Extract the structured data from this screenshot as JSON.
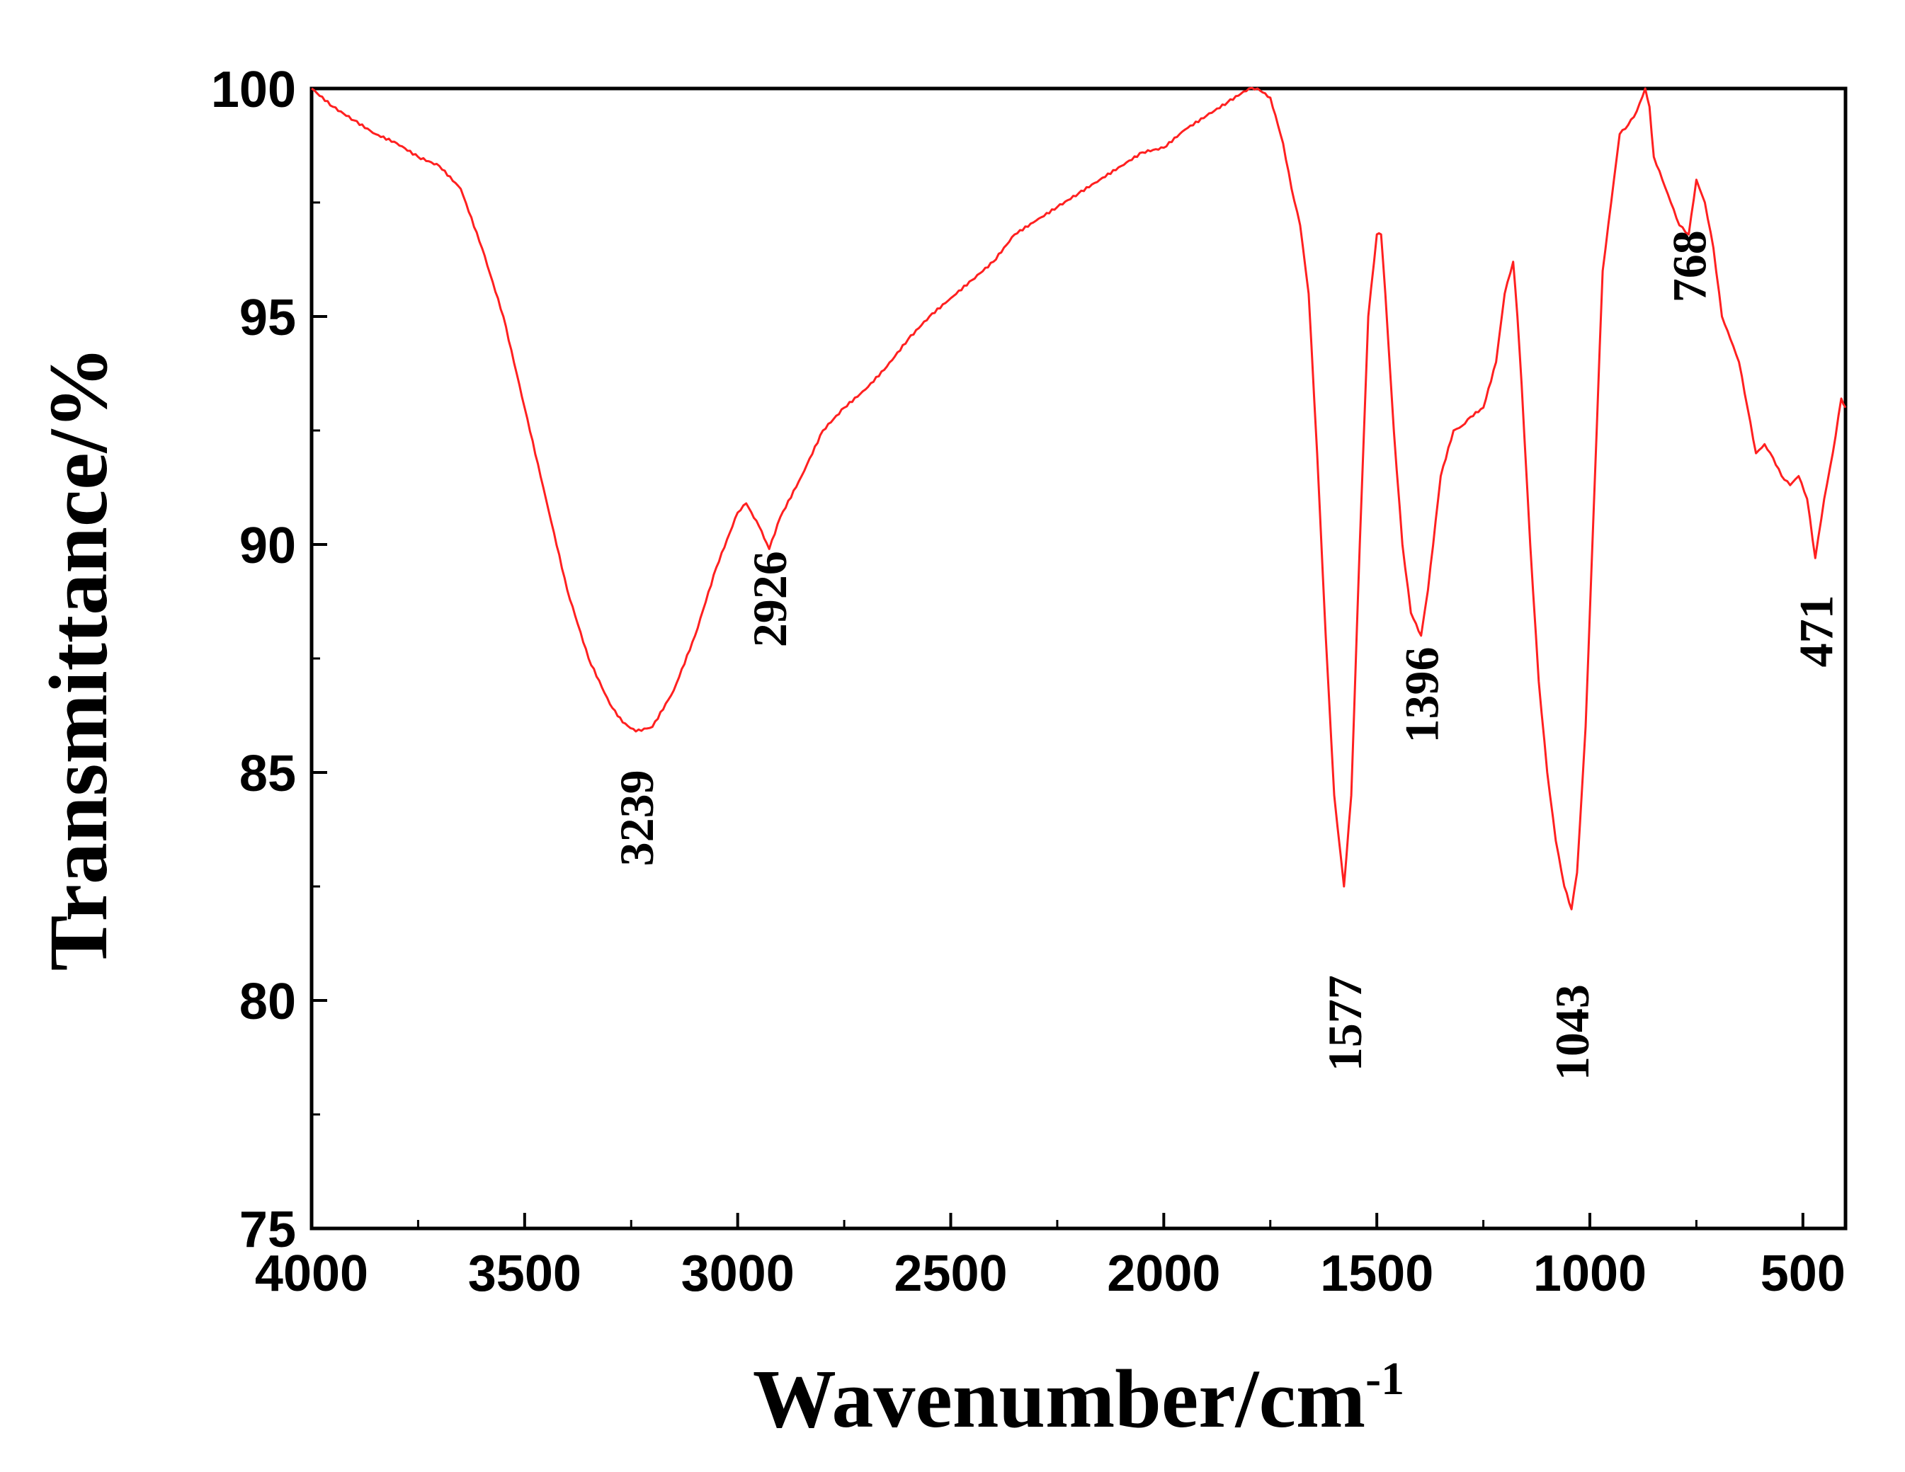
{
  "chart_data": {
    "type": "line",
    "title": "",
    "xlabel": "Wavenumber/cm",
    "xlabel_superscript": "-1",
    "ylabel": "Transmittance/%",
    "xlim": [
      4000,
      400
    ],
    "ylim": [
      75,
      100
    ],
    "x_reversed": true,
    "grid": false,
    "legend": "none",
    "line_color": "#ff2020",
    "x_ticks": [
      4000,
      3500,
      3000,
      2500,
      2000,
      1500,
      1000,
      500
    ],
    "y_ticks": [
      75,
      80,
      85,
      90,
      95,
      100
    ],
    "series": [
      {
        "x": [
          4000,
          3950,
          3900,
          3850,
          3800,
          3750,
          3700,
          3650,
          3600,
          3550,
          3500,
          3450,
          3400,
          3350,
          3300,
          3270,
          3239,
          3200,
          3150,
          3100,
          3050,
          3000,
          2980,
          2950,
          2926,
          2900,
          2850,
          2800,
          2750,
          2700,
          2650,
          2600,
          2550,
          2500,
          2450,
          2400,
          2350,
          2300,
          2250,
          2200,
          2150,
          2100,
          2050,
          2000,
          1950,
          1900,
          1850,
          1800,
          1780,
          1750,
          1720,
          1700,
          1680,
          1660,
          1640,
          1620,
          1600,
          1577,
          1560,
          1540,
          1520,
          1500,
          1490,
          1480,
          1460,
          1440,
          1420,
          1396,
          1380,
          1350,
          1320,
          1300,
          1280,
          1250,
          1220,
          1200,
          1180,
          1170,
          1160,
          1140,
          1120,
          1100,
          1080,
          1060,
          1043,
          1030,
          1010,
          990,
          970,
          950,
          930,
          910,
          890,
          870,
          860,
          850,
          830,
          810,
          790,
          768,
          750,
          730,
          710,
          690,
          670,
          650,
          630,
          610,
          590,
          570,
          550,
          530,
          510,
          490,
          471,
          450,
          430,
          410,
          400
        ],
        "y": [
          100,
          99.6,
          99.3,
          99.0,
          98.8,
          98.5,
          98.3,
          97.8,
          96.5,
          95.0,
          93.0,
          91.0,
          89.0,
          87.5,
          86.5,
          86.1,
          85.9,
          86.0,
          86.8,
          88.0,
          89.5,
          90.7,
          90.9,
          90.4,
          89.9,
          90.6,
          91.5,
          92.5,
          93.0,
          93.4,
          93.9,
          94.5,
          95.0,
          95.4,
          95.8,
          96.2,
          96.8,
          97.1,
          97.4,
          97.7,
          98.0,
          98.3,
          98.6,
          98.7,
          99.1,
          99.4,
          99.7,
          100.0,
          100.0,
          99.8,
          98.8,
          97.8,
          97.0,
          95.5,
          92.0,
          88.0,
          84.5,
          82.5,
          84.5,
          90.0,
          95.0,
          96.8,
          96.8,
          95.5,
          92.5,
          90.0,
          88.5,
          88.0,
          89.0,
          91.5,
          92.5,
          92.6,
          92.8,
          93.0,
          94.0,
          95.5,
          96.2,
          95.0,
          93.5,
          90.0,
          87.0,
          85.0,
          83.5,
          82.5,
          82.0,
          82.8,
          86.0,
          91.0,
          96.0,
          97.5,
          99.0,
          99.2,
          99.5,
          100.0,
          99.6,
          98.5,
          98.0,
          97.5,
          97.0,
          96.8,
          98.0,
          97.5,
          96.5,
          95.0,
          94.5,
          94.0,
          93.0,
          92.0,
          92.2,
          91.9,
          91.5,
          91.3,
          91.5,
          91.0,
          89.7,
          91.0,
          92.0,
          93.2,
          93.0
        ]
      }
    ],
    "annotations": [
      {
        "text": "3239",
        "x": 3239,
        "y": 84.0
      },
      {
        "text": "2926",
        "x": 2926,
        "y": 88.8
      },
      {
        "text": "1577",
        "x": 1577,
        "y": 79.5
      },
      {
        "text": "1396",
        "x": 1396,
        "y": 86.7
      },
      {
        "text": "1043",
        "x": 1043,
        "y": 79.3
      },
      {
        "text": "768",
        "x": 768,
        "y": 96.1
      },
      {
        "text": "471",
        "x": 471,
        "y": 88.1
      }
    ]
  }
}
